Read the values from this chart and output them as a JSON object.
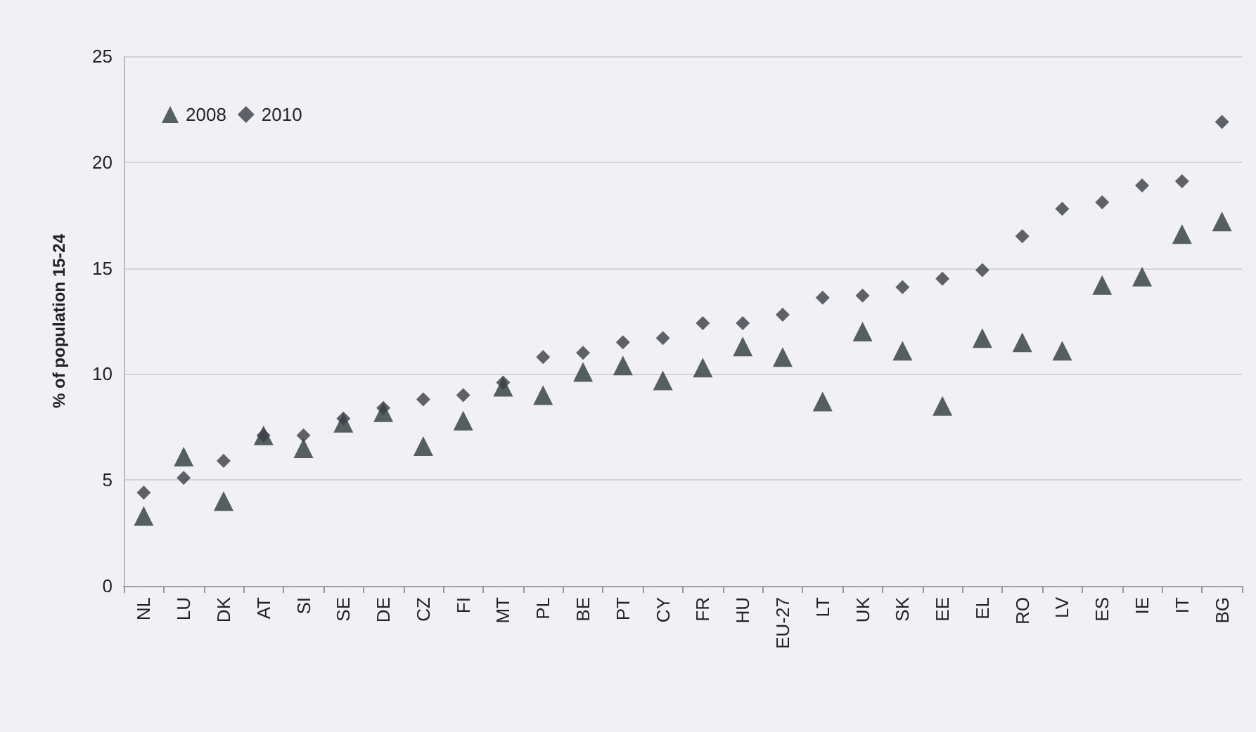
{
  "chart_data": {
    "type": "scatter",
    "ylabel": "% of population 15-24",
    "categories": [
      "NL",
      "LU",
      "DK",
      "AT",
      "SI",
      "SE",
      "DE",
      "CZ",
      "FI",
      "MT",
      "PL",
      "BE",
      "PT",
      "CY",
      "FR",
      "HU",
      "EU-27",
      "LT",
      "UK",
      "SK",
      "EE",
      "EL",
      "RO",
      "LV",
      "ES",
      "IE",
      "IT",
      "BG"
    ],
    "series": [
      {
        "name": "2008",
        "color": "#2e3b38",
        "marker": "triangle",
        "values": [
          3.3,
          6.1,
          4.0,
          7.1,
          6.5,
          7.7,
          8.2,
          6.6,
          7.8,
          9.4,
          9.0,
          10.1,
          10.4,
          9.7,
          10.3,
          11.3,
          10.8,
          8.7,
          12.0,
          11.1,
          8.5,
          11.7,
          11.5,
          11.1,
          14.2,
          14.6,
          16.6,
          17.2
        ]
      },
      {
        "name": "2010",
        "color": "#3a3f45",
        "marker": "diamond",
        "values": [
          4.4,
          5.1,
          5.9,
          7.1,
          7.1,
          7.9,
          8.4,
          8.8,
          9.0,
          9.6,
          10.8,
          11.0,
          11.5,
          11.7,
          12.4,
          12.4,
          12.8,
          13.6,
          13.7,
          14.1,
          14.5,
          14.9,
          16.5,
          17.8,
          18.1,
          18.9,
          19.1,
          21.9
        ]
      }
    ],
    "ylim": [
      0,
      25
    ],
    "yticks": [
      0,
      5,
      10,
      15,
      20,
      25
    ],
    "grid": "y",
    "legend": "top left"
  }
}
